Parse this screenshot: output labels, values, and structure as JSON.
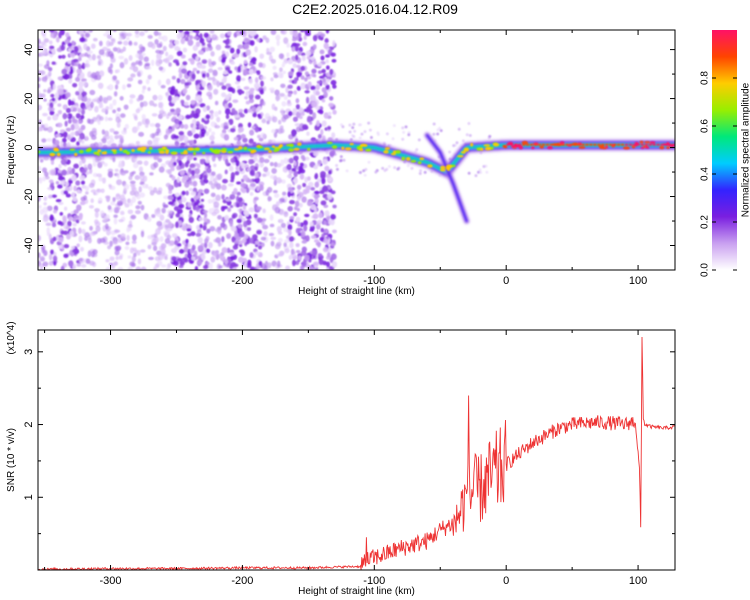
{
  "title": "C2E2.2025.016.04.12.R09",
  "chart_data": [
    {
      "type": "heatmap",
      "title": "C2E2.2025.016.04.12.R09",
      "xlabel": "Height of straight line (km)",
      "ylabel": "Frequency (Hz)",
      "xlim": [
        -355,
        128
      ],
      "ylim": [
        -50,
        48
      ],
      "xticks": [
        -300,
        -200,
        -100,
        0,
        100
      ],
      "yticks": [
        -40,
        -20,
        0,
        20,
        40
      ],
      "colorbar": {
        "label": "Normalized spectral amplitude",
        "range": [
          0,
          1
        ],
        "ticks": [
          0.0,
          0.2,
          0.4,
          0.6,
          0.8
        ],
        "tick_labels": [
          "0.0",
          "0.2",
          "0.4",
          "0.6",
          "0.8"
        ],
        "colors": [
          "#ffffff",
          "#c9a0f0",
          "#7a1fe0",
          "#3322ff",
          "#00ccff",
          "#00e87a",
          "#99ee00",
          "#ffcc00",
          "#ff4400",
          "#ff1166"
        ]
      },
      "features": [
        {
          "name": "main-band",
          "x": [
            -355,
            -200,
            -130,
            -100,
            -80,
            -60,
            -45,
            -30,
            0,
            50,
            100,
            128
          ],
          "y": [
            -2,
            -1,
            1,
            0,
            -3,
            -6,
            -10,
            0,
            1,
            1,
            1,
            1
          ]
        },
        {
          "name": "descending-branch",
          "x": [
            -60,
            -50,
            -40,
            -30
          ],
          "y": [
            5,
            -2,
            -15,
            -30
          ]
        }
      ]
    },
    {
      "type": "line",
      "xlabel": "Height of straight line (km)",
      "ylabel": "SNR (10 * v/v)",
      "y_multiplier": "(x10^4)",
      "xlim": [
        -355,
        128
      ],
      "ylim": [
        0,
        3.3
      ],
      "xticks": [
        -300,
        -200,
        -100,
        0,
        100
      ],
      "yticks": [
        1,
        2,
        3
      ],
      "color": "#ee3333",
      "series": [
        {
          "x": [
            -355,
            -300,
            -250,
            -200,
            -150,
            -110,
            -100,
            -90,
            -80,
            -70,
            -60,
            -50,
            -40,
            -35,
            -30,
            -25,
            -20,
            -15,
            -10,
            -5,
            0,
            10,
            20,
            30,
            40,
            50,
            60,
            70,
            80,
            90,
            98,
            101,
            102,
            103,
            104,
            105,
            110,
            120,
            128
          ],
          "y": [
            0.01,
            0.02,
            0.02,
            0.03,
            0.03,
            0.05,
            0.12,
            0.18,
            0.25,
            0.3,
            0.35,
            0.5,
            0.6,
            0.8,
            1.0,
            1.1,
            1.1,
            1.2,
            1.3,
            1.35,
            1.45,
            1.6,
            1.75,
            1.85,
            1.95,
            2.0,
            2.02,
            2.03,
            2.02,
            2.0,
            2.05,
            1.4,
            0.6,
            3.2,
            2.1,
            2.0,
            1.97,
            1.95,
            1.97
          ]
        }
      ]
    }
  ],
  "labels": {
    "top_yticks": [
      "-40",
      "-20",
      "0",
      "20",
      "40"
    ],
    "bottom_yticks": [
      "1",
      "2",
      "3"
    ],
    "xticks": [
      "-300",
      "-200",
      "-100",
      "0",
      "100"
    ]
  }
}
